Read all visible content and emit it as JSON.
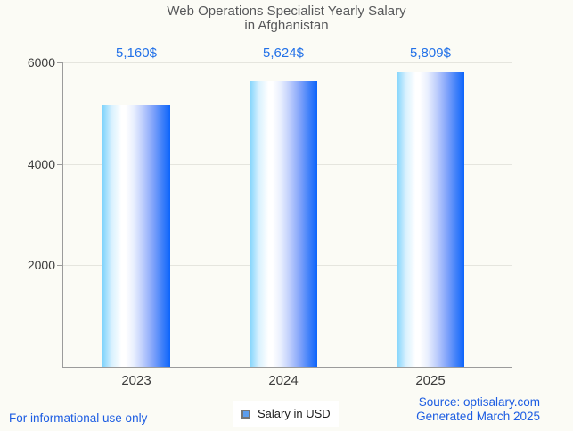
{
  "title": {
    "line1": "Web Operations Specialist Yearly Salary",
    "line2": "in Afghanistan"
  },
  "chart_data": {
    "type": "bar",
    "title": "Web Operations Specialist Yearly Salary in Afghanistan",
    "categories": [
      "2023",
      "2024",
      "2025"
    ],
    "values": [
      5160,
      5624,
      5809
    ],
    "value_labels": [
      "5,160$",
      "5,624$",
      "5,809$"
    ],
    "series_name": "Salary in USD",
    "xlabel": "",
    "ylabel": "",
    "ylim": [
      0,
      6000
    ],
    "y_ticks": [
      6000,
      4000,
      2000
    ],
    "y_tick_labels": [
      "6000",
      "4000",
      "2000"
    ],
    "grid": true,
    "legend_position": "bottom"
  },
  "legend": {
    "label": "Salary in USD"
  },
  "footer": {
    "left": "For informational use only",
    "source": "Source: optisalary.com",
    "generated": "Generated March 2025"
  },
  "colors": {
    "background": "#fbfbf5",
    "accent_blue": "#2068e0",
    "value_label_blue": "#2271e8",
    "footer_blue": "#1d5de2",
    "title_gray": "#57585a",
    "axis_gray": "#9b9b9b",
    "grid_gray": "#e5e5de",
    "bar_gradient_left": "#7ed3fc",
    "bar_gradient_mid": "#ffffff",
    "bar_gradient_right": "#0c64fb",
    "legend_marker_fill": "#5c9ded",
    "legend_marker_border": "#757575"
  }
}
